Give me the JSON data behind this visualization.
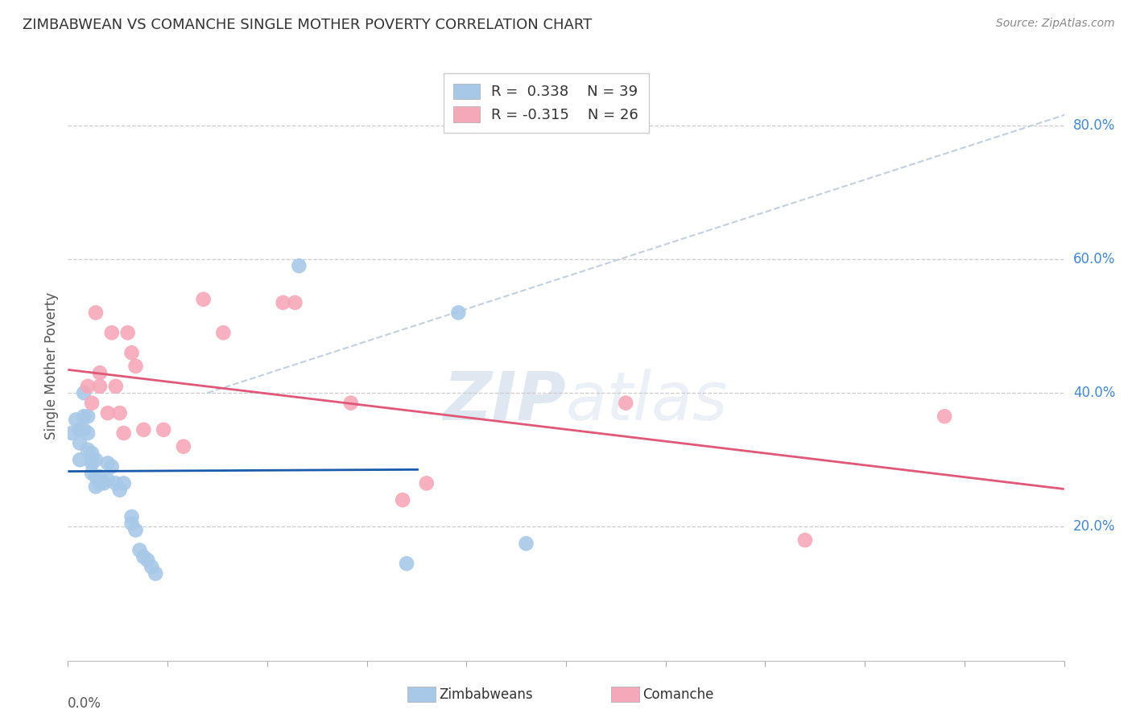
{
  "title": "ZIMBABWEAN VS COMANCHE SINGLE MOTHER POVERTY CORRELATION CHART",
  "source": "Source: ZipAtlas.com",
  "ylabel": "Single Mother Poverty",
  "y_ticks": [
    0.2,
    0.4,
    0.6,
    0.8
  ],
  "y_tick_labels": [
    "20.0%",
    "40.0%",
    "60.0%",
    "80.0%"
  ],
  "x_range": [
    0.0,
    0.25
  ],
  "y_range": [
    0.0,
    0.88
  ],
  "legend": {
    "zim_r": " 0.338",
    "zim_n": "39",
    "com_r": "-0.315",
    "com_n": "26"
  },
  "watermark": "ZIPatlas",
  "zim_color": "#a8c8e8",
  "com_color": "#f5a8b8",
  "zim_line_color": "#1a5aaa",
  "com_line_color": "#e05878",
  "dash_color": "#b8c8d8",
  "zim_scatter": [
    [
      0.001,
      0.34
    ],
    [
      0.002,
      0.36
    ],
    [
      0.003,
      0.345
    ],
    [
      0.003,
      0.325
    ],
    [
      0.003,
      0.3
    ],
    [
      0.004,
      0.4
    ],
    [
      0.004,
      0.365
    ],
    [
      0.004,
      0.345
    ],
    [
      0.005,
      0.365
    ],
    [
      0.005,
      0.34
    ],
    [
      0.005,
      0.315
    ],
    [
      0.006,
      0.295
    ],
    [
      0.006,
      0.31
    ],
    [
      0.006,
      0.28
    ],
    [
      0.006,
      0.3
    ],
    [
      0.007,
      0.3
    ],
    [
      0.007,
      0.275
    ],
    [
      0.007,
      0.26
    ],
    [
      0.008,
      0.275
    ],
    [
      0.008,
      0.265
    ],
    [
      0.009,
      0.265
    ],
    [
      0.01,
      0.295
    ],
    [
      0.01,
      0.27
    ],
    [
      0.011,
      0.29
    ],
    [
      0.012,
      0.265
    ],
    [
      0.013,
      0.255
    ],
    [
      0.014,
      0.265
    ],
    [
      0.016,
      0.215
    ],
    [
      0.016,
      0.205
    ],
    [
      0.017,
      0.195
    ],
    [
      0.018,
      0.165
    ],
    [
      0.019,
      0.155
    ],
    [
      0.02,
      0.15
    ],
    [
      0.021,
      0.14
    ],
    [
      0.022,
      0.13
    ],
    [
      0.058,
      0.59
    ],
    [
      0.085,
      0.145
    ],
    [
      0.098,
      0.52
    ],
    [
      0.115,
      0.175
    ]
  ],
  "com_scatter": [
    [
      0.005,
      0.41
    ],
    [
      0.006,
      0.385
    ],
    [
      0.007,
      0.52
    ],
    [
      0.008,
      0.43
    ],
    [
      0.008,
      0.41
    ],
    [
      0.01,
      0.37
    ],
    [
      0.011,
      0.49
    ],
    [
      0.012,
      0.41
    ],
    [
      0.013,
      0.37
    ],
    [
      0.014,
      0.34
    ],
    [
      0.015,
      0.49
    ],
    [
      0.016,
      0.46
    ],
    [
      0.017,
      0.44
    ],
    [
      0.019,
      0.345
    ],
    [
      0.024,
      0.345
    ],
    [
      0.029,
      0.32
    ],
    [
      0.034,
      0.54
    ],
    [
      0.039,
      0.49
    ],
    [
      0.054,
      0.535
    ],
    [
      0.057,
      0.535
    ],
    [
      0.071,
      0.385
    ],
    [
      0.084,
      0.24
    ],
    [
      0.09,
      0.265
    ],
    [
      0.14,
      0.385
    ],
    [
      0.185,
      0.18
    ],
    [
      0.22,
      0.365
    ]
  ]
}
